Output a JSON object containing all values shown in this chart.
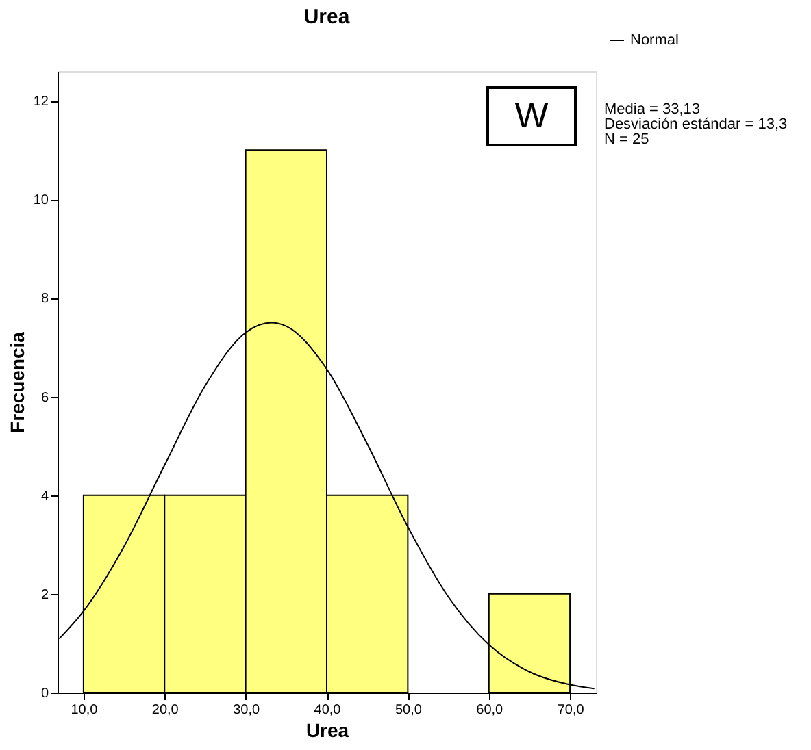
{
  "chart_data": {
    "type": "histogram",
    "title": "Urea",
    "xlabel": "Urea",
    "ylabel": "Frecuencia",
    "bins": [
      10,
      20,
      30,
      40,
      50,
      60,
      70
    ],
    "values": [
      4,
      4,
      11,
      4,
      0,
      2
    ],
    "color": "#ffff80",
    "series": [
      {
        "name": "Normal",
        "type": "line",
        "color": "#000000",
        "x": [
          7,
          10,
          15,
          20,
          25,
          30,
          33.13,
          35,
          40,
          45,
          50,
          55,
          60,
          65,
          70,
          73
        ],
        "values": [
          1.09,
          1.65,
          2.96,
          4.61,
          6.22,
          7.3,
          7.5,
          7.43,
          6.56,
          5.04,
          3.36,
          1.94,
          0.97,
          0.42,
          0.16,
          0.08
        ]
      }
    ],
    "xlim": [
      6.8,
      73.2
    ],
    "ylim": [
      0,
      12.6
    ],
    "xticks": [
      {
        "value": 10,
        "label": "10,0"
      },
      {
        "value": 20,
        "label": "20,0"
      },
      {
        "value": 30,
        "label": "30,0"
      },
      {
        "value": 40,
        "label": "40,0"
      },
      {
        "value": 50,
        "label": "50,0"
      },
      {
        "value": 60,
        "label": "60,0"
      },
      {
        "value": 70,
        "label": "70,0"
      }
    ],
    "yticks": [
      0,
      2,
      4,
      6,
      8,
      10,
      12
    ],
    "grid": false,
    "legend": "top right",
    "annotations": [
      "W",
      "Media = 33,13",
      "Desviación estándar = 13,3",
      "N = 25"
    ]
  }
}
